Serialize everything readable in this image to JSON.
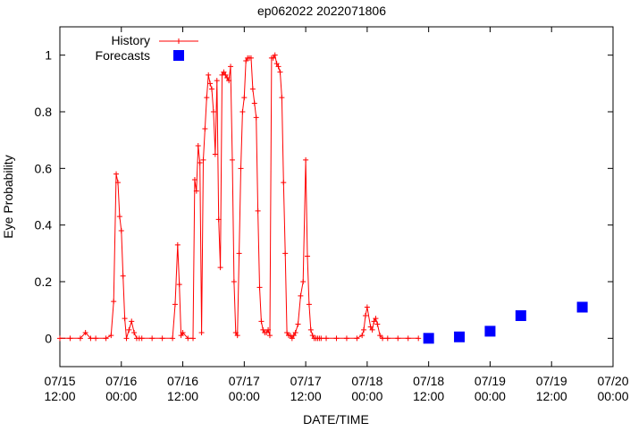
{
  "chart_data": {
    "type": "line",
    "title": "ep062022 2022071806",
    "xlabel": "DATE/TIME",
    "ylabel": "Eye Probability",
    "xlim": [
      "2022-07-15 12:00",
      "2022-07-20 00:00"
    ],
    "ylim": [
      -0.1,
      1.1
    ],
    "yticks": [
      0,
      0.2,
      0.4,
      0.6,
      0.8,
      1
    ],
    "ytick_labels": [
      "0",
      "0.2",
      "0.4",
      "0.6",
      "0.8",
      "1"
    ],
    "xticks": [
      "2022-07-15 12:00",
      "2022-07-16 00:00",
      "2022-07-16 12:00",
      "2022-07-17 00:00",
      "2022-07-17 12:00",
      "2022-07-18 00:00",
      "2022-07-18 12:00",
      "2022-07-19 00:00",
      "2022-07-19 12:00",
      "2022-07-20 00:00"
    ],
    "xtick_labels": [
      [
        "07/15",
        "12:00"
      ],
      [
        "07/16",
        "00:00"
      ],
      [
        "07/16",
        "12:00"
      ],
      [
        "07/17",
        "00:00"
      ],
      [
        "07/17",
        "12:00"
      ],
      [
        "07/18",
        "00:00"
      ],
      [
        "07/18",
        "12:00"
      ],
      [
        "07/19",
        "00:00"
      ],
      [
        "07/19",
        "12:00"
      ],
      [
        "07/20",
        "00:00"
      ]
    ],
    "grid": false,
    "legend": "top-left",
    "colors": {
      "history": "#ff0000",
      "forecasts": "#0000ff"
    },
    "series": [
      {
        "name": "History",
        "style": "line-with-plus-markers",
        "x": [
          "2022-07-15 12:00",
          "2022-07-15 14:00",
          "2022-07-15 16:00",
          "2022-07-15 17:00",
          "2022-07-15 18:00",
          "2022-07-15 19:00",
          "2022-07-15 21:00",
          "2022-07-15 22:00",
          "2022-07-15 22:30",
          "2022-07-15 23:00",
          "2022-07-15 23:20",
          "2022-07-15 23:40",
          "2022-07-16 00:00",
          "2022-07-16 00:20",
          "2022-07-16 00:40",
          "2022-07-16 01:00",
          "2022-07-16 01:30",
          "2022-07-16 02:00",
          "2022-07-16 02:30",
          "2022-07-16 03:00",
          "2022-07-16 03:30",
          "2022-07-16 04:00",
          "2022-07-16 06:00",
          "2022-07-16 08:00",
          "2022-07-16 10:00",
          "2022-07-16 10:30",
          "2022-07-16 11:00",
          "2022-07-16 11:20",
          "2022-07-16 11:40",
          "2022-07-16 12:00",
          "2022-07-16 13:00",
          "2022-07-16 14:00",
          "2022-07-16 14:20",
          "2022-07-16 14:40",
          "2022-07-16 15:00",
          "2022-07-16 15:20",
          "2022-07-16 15:40",
          "2022-07-16 16:00",
          "2022-07-16 16:20",
          "2022-07-16 16:40",
          "2022-07-16 17:00",
          "2022-07-16 17:20",
          "2022-07-16 17:40",
          "2022-07-16 18:00",
          "2022-07-16 18:20",
          "2022-07-16 18:40",
          "2022-07-16 19:00",
          "2022-07-16 19:20",
          "2022-07-16 19:40",
          "2022-07-16 20:00",
          "2022-07-16 20:20",
          "2022-07-16 20:40",
          "2022-07-16 21:00",
          "2022-07-16 21:20",
          "2022-07-16 21:40",
          "2022-07-16 22:00",
          "2022-07-16 22:20",
          "2022-07-16 22:40",
          "2022-07-16 23:00",
          "2022-07-16 23:20",
          "2022-07-16 23:40",
          "2022-07-17 00:00",
          "2022-07-17 00:20",
          "2022-07-17 00:40",
          "2022-07-17 01:00",
          "2022-07-17 01:20",
          "2022-07-17 01:40",
          "2022-07-17 02:00",
          "2022-07-17 02:20",
          "2022-07-17 02:40",
          "2022-07-17 03:00",
          "2022-07-17 03:20",
          "2022-07-17 03:40",
          "2022-07-17 04:00",
          "2022-07-17 04:20",
          "2022-07-17 04:40",
          "2022-07-17 05:00",
          "2022-07-17 05:20",
          "2022-07-17 05:40",
          "2022-07-17 06:00",
          "2022-07-17 06:20",
          "2022-07-17 06:40",
          "2022-07-17 07:00",
          "2022-07-17 07:20",
          "2022-07-17 07:40",
          "2022-07-17 08:00",
          "2022-07-17 08:20",
          "2022-07-17 08:40",
          "2022-07-17 09:00",
          "2022-07-17 09:20",
          "2022-07-17 09:40",
          "2022-07-17 10:00",
          "2022-07-17 10:30",
          "2022-07-17 11:00",
          "2022-07-17 11:30",
          "2022-07-17 12:00",
          "2022-07-17 12:20",
          "2022-07-17 12:40",
          "2022-07-17 13:00",
          "2022-07-17 13:20",
          "2022-07-17 13:40",
          "2022-07-17 14:00",
          "2022-07-17 14:20",
          "2022-07-17 14:40",
          "2022-07-17 15:00",
          "2022-07-17 16:00",
          "2022-07-17 18:00",
          "2022-07-17 20:00",
          "2022-07-17 22:00",
          "2022-07-17 23:00",
          "2022-07-17 23:20",
          "2022-07-17 23:40",
          "2022-07-18 00:00",
          "2022-07-18 00:40",
          "2022-07-18 01:00",
          "2022-07-18 01:20",
          "2022-07-18 01:40",
          "2022-07-18 02:00",
          "2022-07-18 02:30",
          "2022-07-18 03:00",
          "2022-07-18 04:00",
          "2022-07-18 06:00",
          "2022-07-18 08:00",
          "2022-07-18 10:00"
        ],
        "y": [
          0,
          0,
          0,
          0.02,
          0,
          0,
          0,
          0.01,
          0.13,
          0.58,
          0.55,
          0.43,
          0.38,
          0.22,
          0.07,
          0,
          0.03,
          0.06,
          0.02,
          0,
          0,
          0,
          0,
          0,
          0,
          0.12,
          0.33,
          0.19,
          0.01,
          0.02,
          0,
          0,
          0.56,
          0.52,
          0.68,
          0.62,
          0.02,
          0.63,
          0.74,
          0.85,
          0.93,
          0.9,
          0.88,
          0.8,
          0.65,
          0.91,
          0.42,
          0.25,
          0.93,
          0.94,
          0.93,
          0.92,
          0.91,
          0.96,
          0.63,
          0.2,
          0.02,
          0.01,
          0.3,
          0.6,
          0.8,
          0.85,
          0.98,
          0.99,
          0.99,
          0.99,
          0.88,
          0.83,
          0.78,
          0.45,
          0.18,
          0.06,
          0.03,
          0.02,
          0.02,
          0.03,
          0.01,
          0.99,
          0.99,
          1.0,
          0.97,
          0.96,
          0.94,
          0.85,
          0.55,
          0.3,
          0.02,
          0.01,
          0.01,
          0.0,
          0.01,
          0.02,
          0.05,
          0.15,
          0.2,
          0.63,
          0.29,
          0.12,
          0.03,
          0.01,
          0.0,
          0.0,
          0.0,
          0.0,
          0.0,
          0.0,
          0.0,
          0.0,
          0.0,
          0.01,
          0.03,
          0.08,
          0.11,
          0.04,
          0.03,
          0.06,
          0.07,
          0.05,
          0.01,
          0.0,
          0.0,
          0.0,
          0.0,
          0.0
        ]
      },
      {
        "name": "Forecasts",
        "style": "square-markers",
        "x": [
          "2022-07-18 12:00",
          "2022-07-18 18:00",
          "2022-07-19 00:00",
          "2022-07-19 06:00",
          "2022-07-19 18:00"
        ],
        "y": [
          0.0,
          0.005,
          0.025,
          0.08,
          0.11
        ]
      }
    ]
  }
}
